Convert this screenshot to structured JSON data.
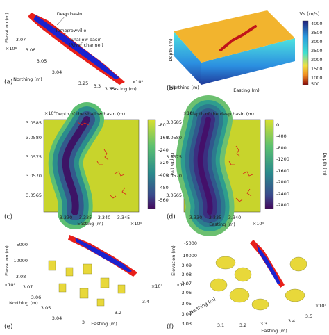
{
  "panels": {
    "a": [
      "(a)",
      "Deep basin",
      "Tomorrowville",
      "Shallow basin",
      "(River channel)",
      "Elevation (m)",
      "Northing (m)",
      "Easting (m)",
      "3.07",
      "3.06",
      "3.05",
      "3.04",
      "×10⁶",
      "3.25",
      "3.3",
      "3.35",
      "×10⁵"
    ],
    "b": [
      "(b)",
      "Vs (m/s)",
      "Depth (m)",
      "Northing (m)",
      "Easting (m)",
      "4000",
      "3500",
      "3000",
      "2500",
      "2000",
      "1500",
      "1000",
      "500"
    ],
    "c": [
      "(c)",
      "Depth of the shallow basin (m)",
      "×10⁶",
      "3.0585",
      "3.0580",
      "3.0575",
      "3.0570",
      "3.0565",
      "3.330",
      "3.335",
      "3.340",
      "3.345",
      "Easting (m)",
      "×10⁵",
      "-80",
      "-160",
      "-240",
      "-320",
      "-400",
      "-480",
      "-560",
      "Depth (m)"
    ],
    "d": [
      "(d)",
      "Depth of the deep basin (m)",
      "×10⁶",
      "3.0585",
      "3.0580",
      "3.0575",
      "3.0570",
      "3.0565",
      "3.330",
      "3.335",
      "3.340",
      "Easting (m)",
      "×10⁵",
      "0",
      "-400",
      "-800",
      "-1200",
      "-1600",
      "-2000",
      "-2400",
      "-2800",
      "Depth (m)"
    ],
    "e": [
      "(e)",
      "Elevation (m)",
      "-5000",
      "-10000",
      "×10⁶",
      "3.08",
      "3.07",
      "3.06",
      "3.05",
      "3.04",
      "Northing (m)",
      "3",
      "3.2",
      "3.4",
      "Easting (m)",
      "×10⁵"
    ],
    "f": [
      "(f)",
      "Elevation (m)",
      "-5000",
      "-10000",
      "3.09",
      "3.08",
      "3.07",
      "3.06",
      "3.05",
      "3.04",
      "3.03",
      "×10⁶",
      "Northing (m)",
      "3.1",
      "3.2",
      "3.3",
      "3.4",
      "3.5",
      "Easting (m)",
      "×10⁵"
    ]
  }
}
